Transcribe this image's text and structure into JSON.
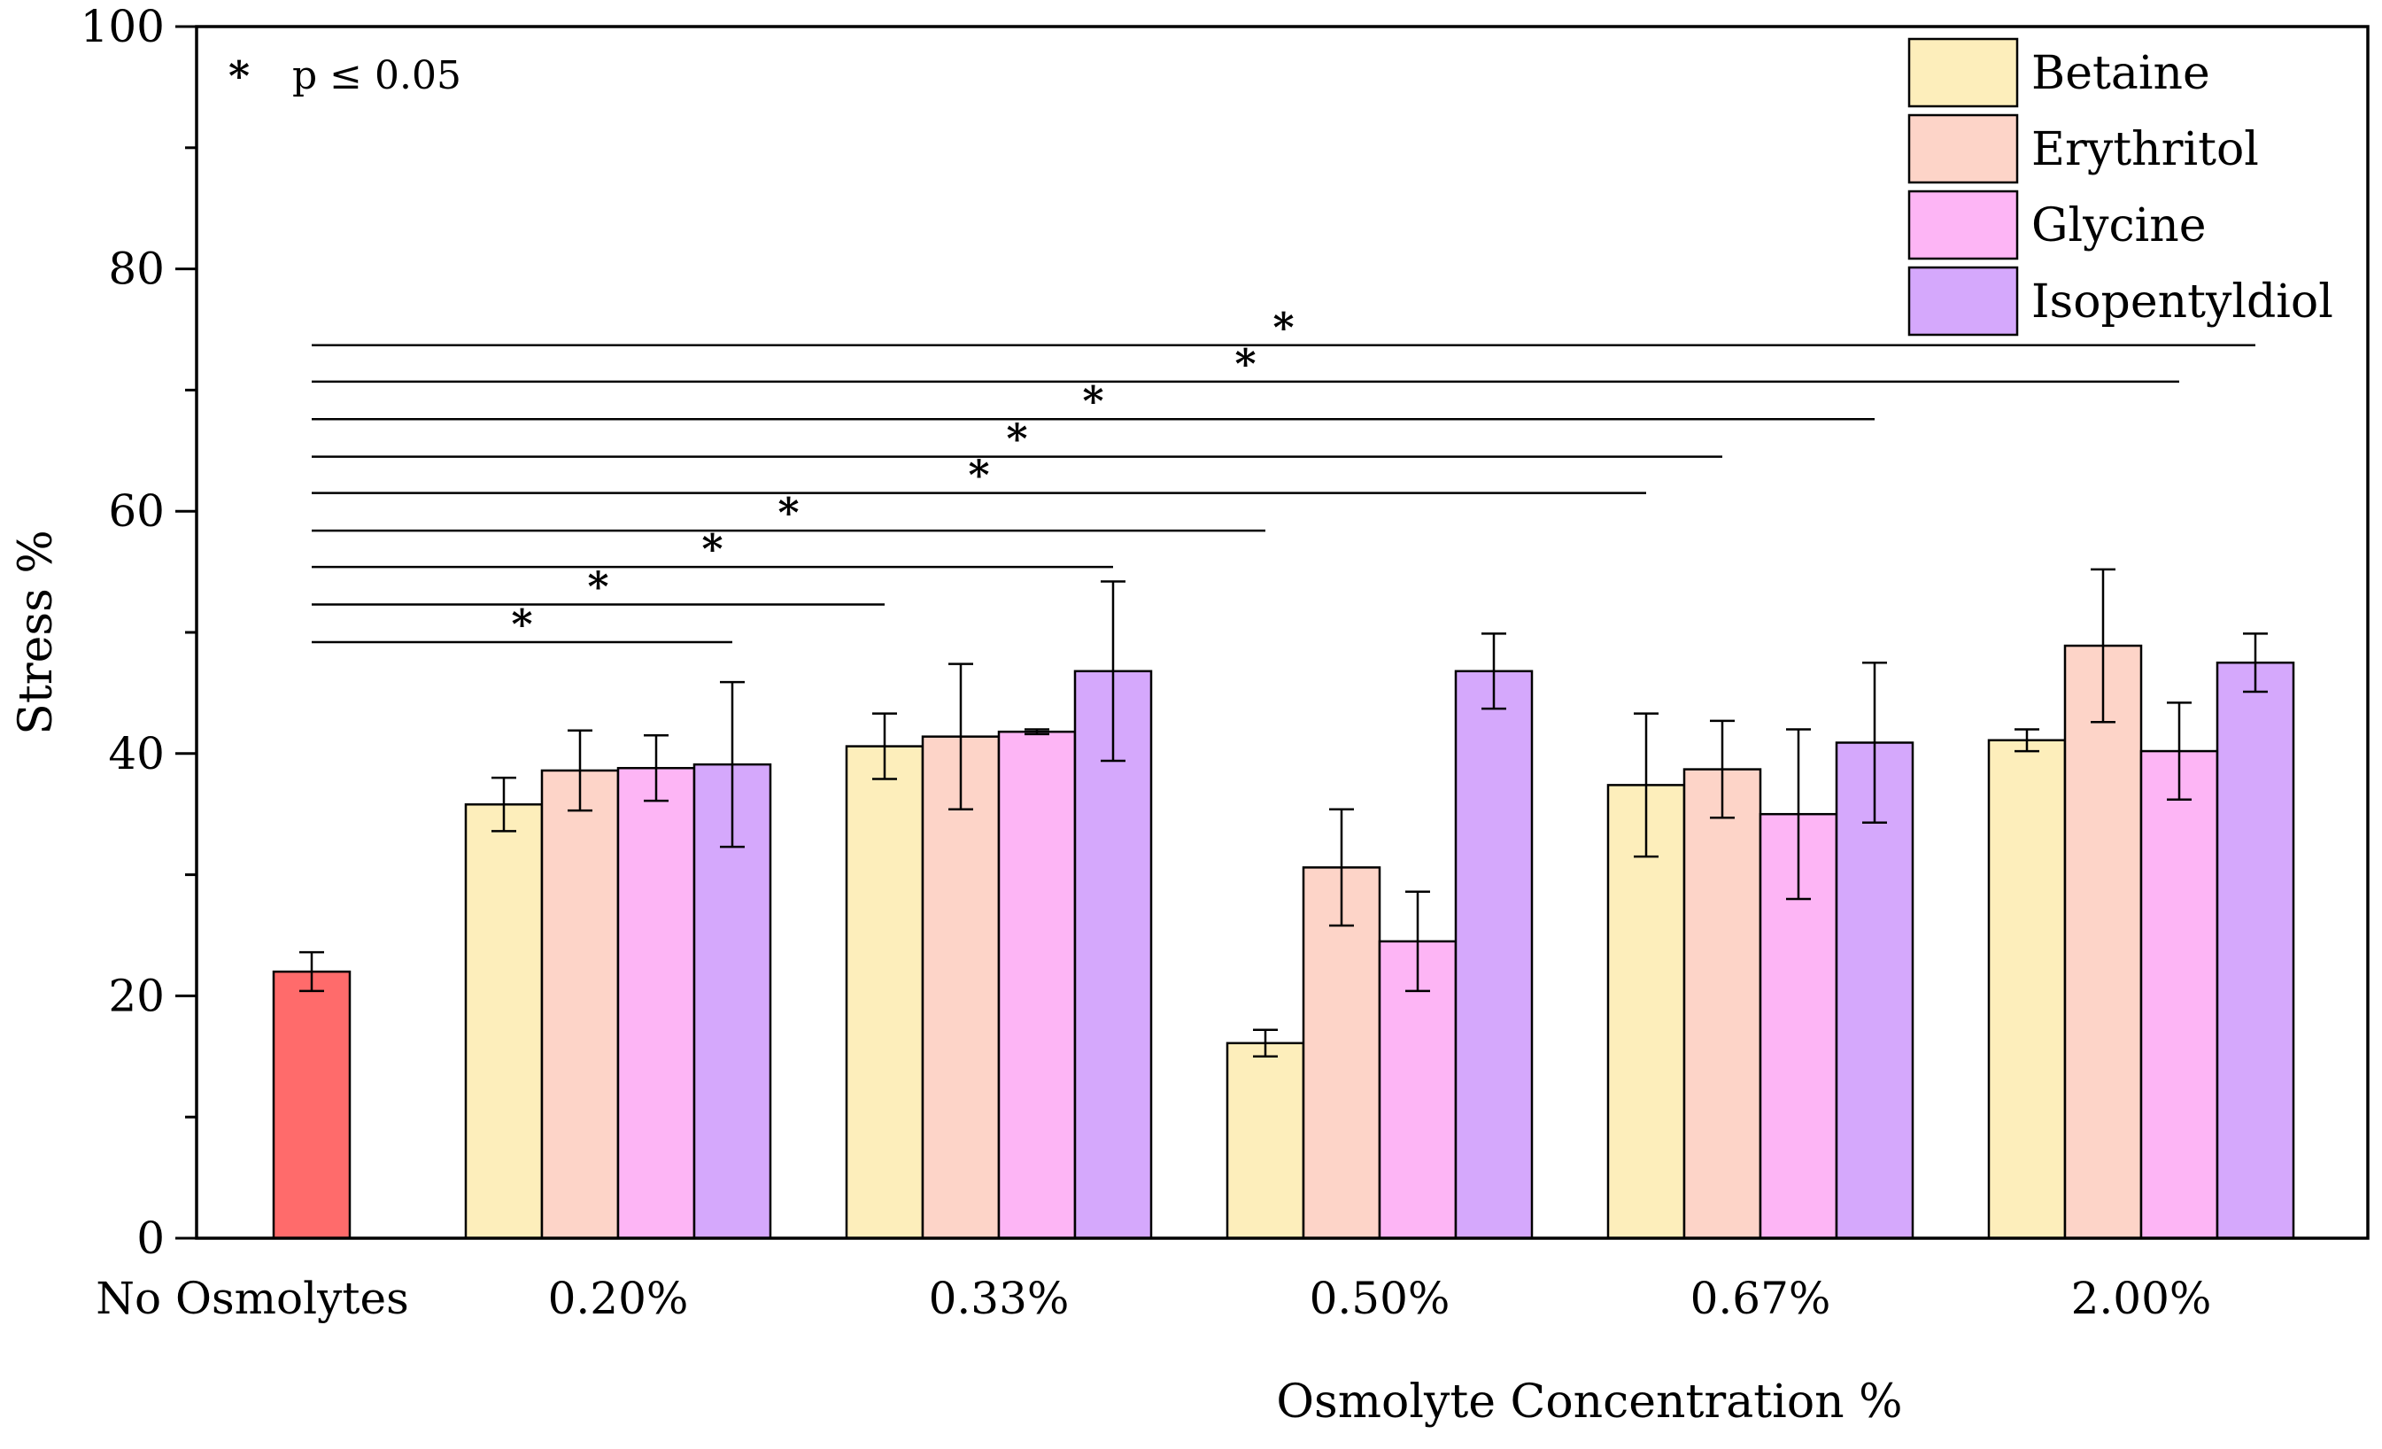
{
  "chart_data": {
    "type": "bar",
    "title": "",
    "xlabel": "Osmolyte Concentration %",
    "ylabel": "Stress %",
    "ylim": [
      0,
      100
    ],
    "yticks": [
      0,
      20,
      40,
      60,
      80,
      100
    ],
    "control": {
      "category": "No Osmolytes",
      "value": 22.0,
      "error": 1.6,
      "color": "#ff6b6b"
    },
    "categories": [
      "0.20%",
      "0.33%",
      "0.50%",
      "0.67%",
      "2.00%"
    ],
    "series": [
      {
        "name": "Betaine",
        "color": "#fdeebb",
        "values": [
          35.8,
          40.6,
          16.1,
          37.4,
          41.1
        ],
        "errors": [
          2.2,
          2.7,
          1.1,
          5.9,
          0.9
        ]
      },
      {
        "name": "Erythritol",
        "color": "#fdd4c8",
        "values": [
          38.6,
          41.4,
          30.6,
          38.7,
          48.9
        ],
        "errors": [
          3.3,
          6.0,
          4.8,
          4.0,
          6.3
        ]
      },
      {
        "name": "Glycine",
        "color": "#fdb5f5",
        "values": [
          38.8,
          41.8,
          24.5,
          35.0,
          40.2
        ],
        "errors": [
          2.7,
          0.2,
          4.1,
          7.0,
          4.0
        ]
      },
      {
        "name": "Isopentyldiol",
        "color": "#d5a8fc",
        "values": [
          39.1,
          46.8,
          46.8,
          40.9,
          47.5
        ],
        "errors": [
          6.8,
          7.4,
          3.1,
          6.6,
          2.4
        ]
      }
    ],
    "significance": {
      "label_symbol": "*",
      "label_text": "p ≤ 0.05",
      "comparisons": [
        {
          "to_category": "0.20%",
          "to_series": "Isopentyldiol",
          "level": 49.2,
          "star": "*"
        },
        {
          "to_category": "0.33%",
          "to_series": "Betaine",
          "level": 52.3,
          "star": "*"
        },
        {
          "to_category": "0.33%",
          "to_series": "Isopentyldiol",
          "level": 55.4,
          "star": "*"
        },
        {
          "to_category": "0.50%",
          "to_series": "Betaine",
          "level": 58.4,
          "star": "*"
        },
        {
          "to_category": "0.67%",
          "to_series": "Betaine",
          "level": 61.5,
          "star": "*"
        },
        {
          "to_category": "0.67%",
          "to_series": "Erythritol",
          "level": 64.5,
          "star": "*"
        },
        {
          "to_category": "0.67%",
          "to_series": "Isopentyldiol",
          "level": 67.6,
          "star": "*"
        },
        {
          "to_category": "2.00%",
          "to_series": "Glycine",
          "level": 70.7,
          "star": "*"
        },
        {
          "to_category": "2.00%",
          "to_series": "Isopentyldiol",
          "level": 73.7,
          "star": "*"
        }
      ]
    },
    "legend_position": "top-right"
  }
}
